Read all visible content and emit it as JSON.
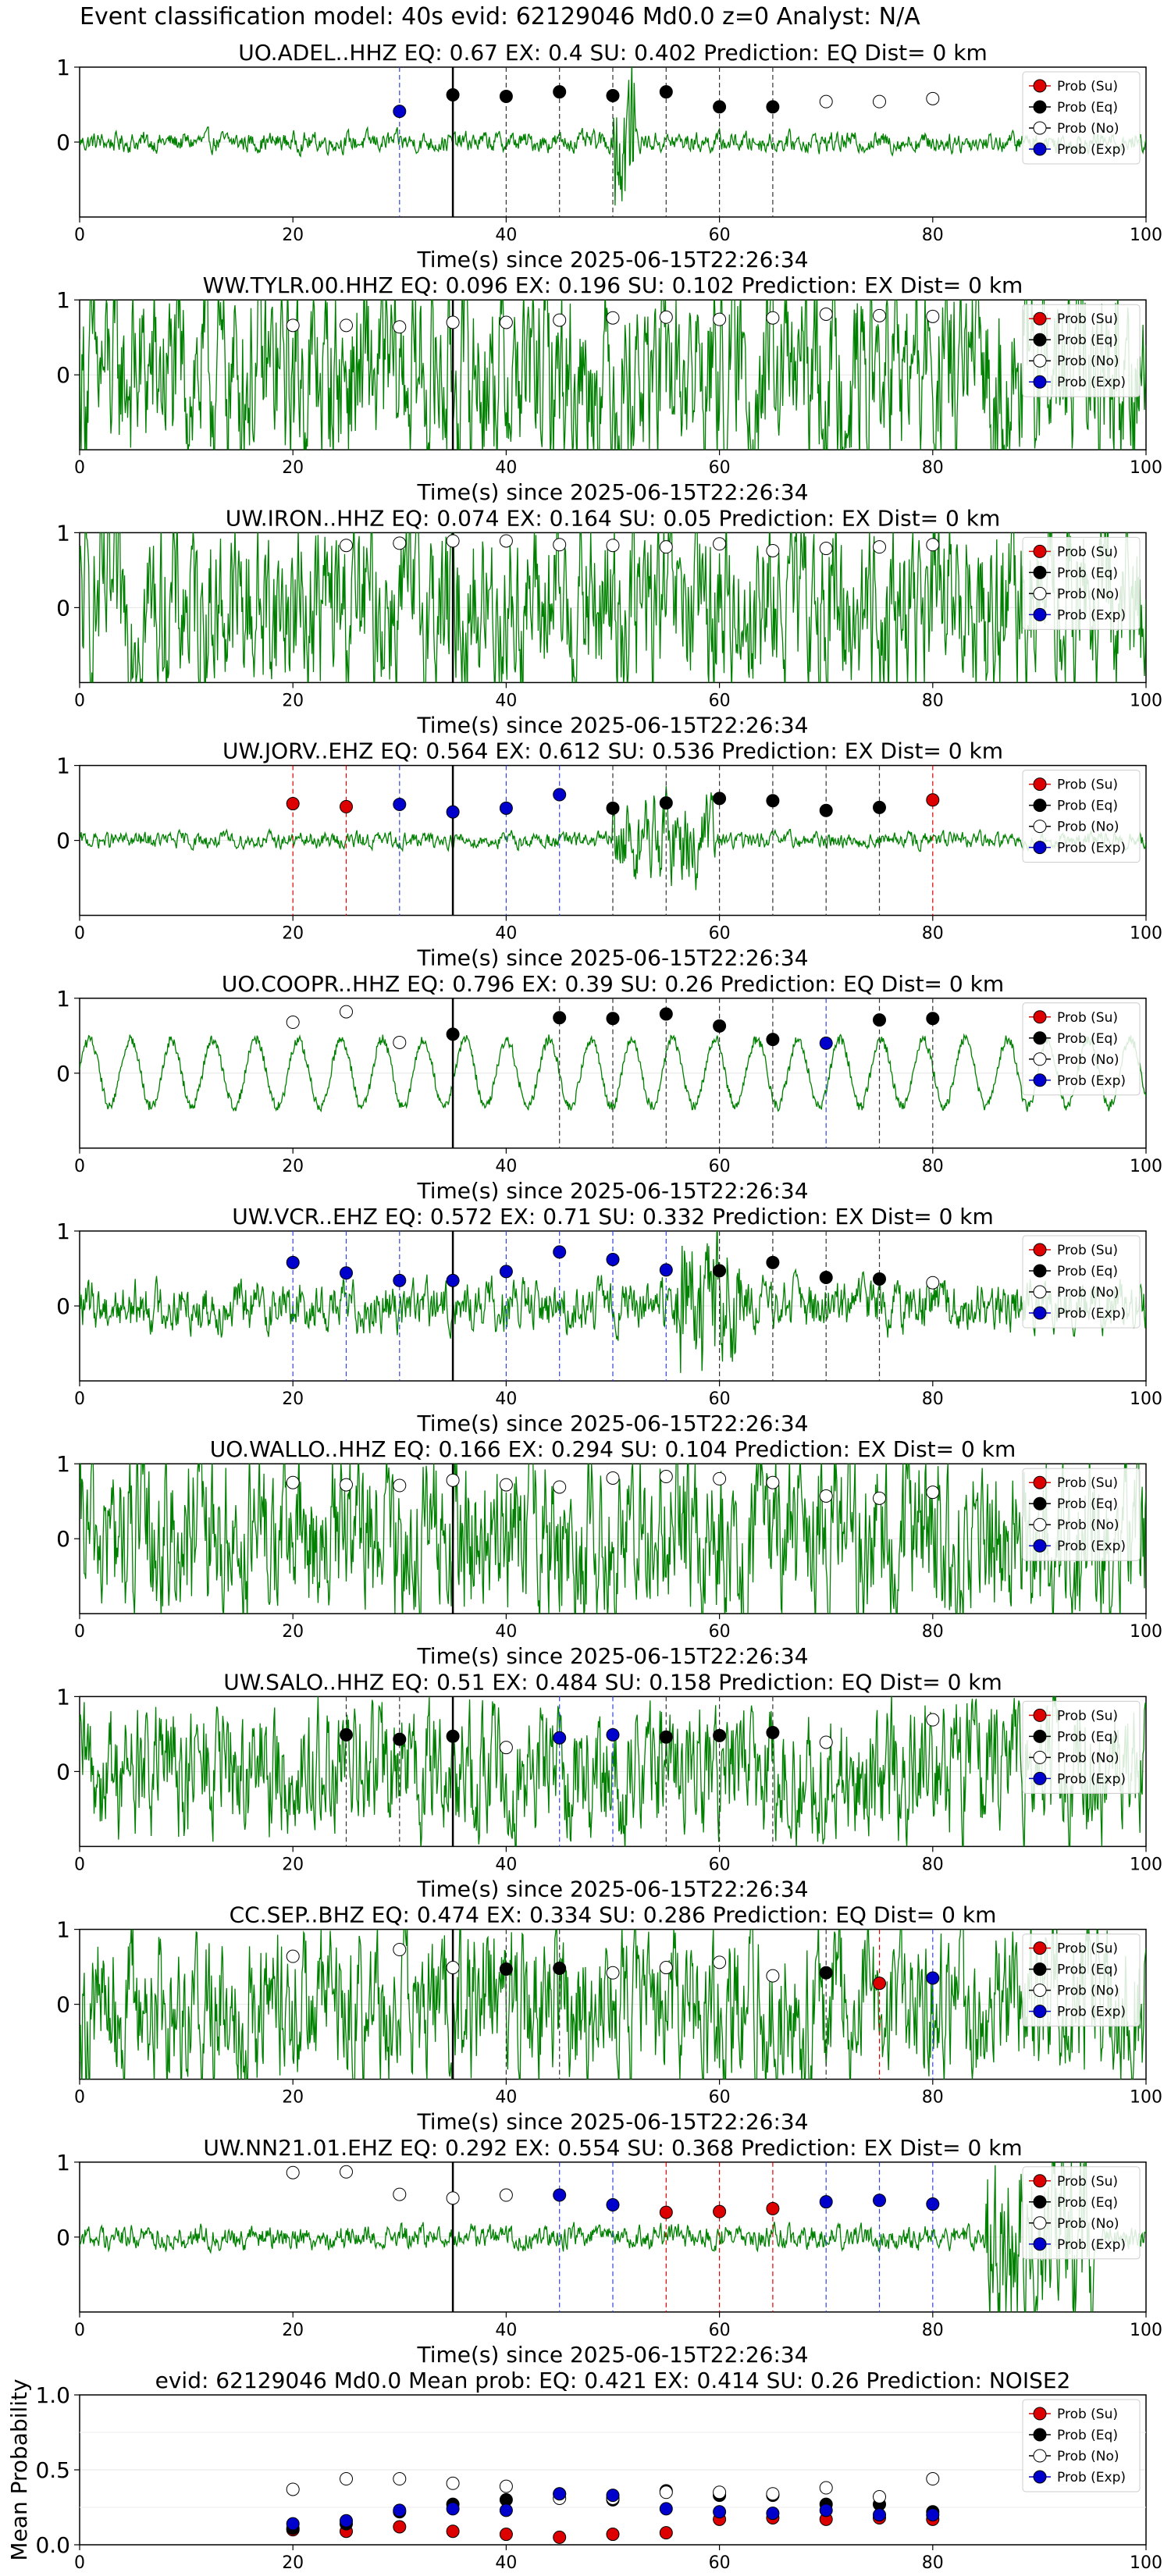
{
  "figure_title": "Event classification model: 40s evid: 62129046 Md0.0 z=0 Analyst: N/A",
  "legend_labels": [
    "Prob (Su)",
    "Prob (Eq)",
    "Prob (No)",
    "Prob (Exp)"
  ],
  "colors": {
    "Su": "#dd0000",
    "Eq": "#000000",
    "No": "#ffffff",
    "Exp": "#0000cc",
    "waveform": "#008000"
  },
  "chart_data": [
    {
      "type": "scatter",
      "title": "UO.ADEL..HHZ   EQ: 0.67  EX: 0.4  SU: 0.402   Prediction: EQ    Dist= 0 km",
      "xlabel": "Time(s) since 2025-06-15T22:26:34",
      "xlim": [
        0,
        100
      ],
      "ylim": [
        -1,
        1
      ],
      "xticks": [
        0,
        20,
        40,
        60,
        80,
        100
      ],
      "yticks": [
        0,
        1
      ],
      "waveform_amp": 0.1,
      "burst": [
        50,
        52,
        0.9
      ],
      "pick_time": 35,
      "points": [
        {
          "x": 30,
          "y": 0.41,
          "c": "Exp"
        },
        {
          "x": 35,
          "y": 0.63,
          "c": "Eq"
        },
        {
          "x": 40,
          "y": 0.61,
          "c": "Eq"
        },
        {
          "x": 45,
          "y": 0.67,
          "c": "Eq"
        },
        {
          "x": 50,
          "y": 0.62,
          "c": "Eq"
        },
        {
          "x": 55,
          "y": 0.67,
          "c": "Eq"
        },
        {
          "x": 60,
          "y": 0.47,
          "c": "Eq"
        },
        {
          "x": 65,
          "y": 0.47,
          "c": "Eq"
        },
        {
          "x": 70,
          "y": 0.54,
          "c": "No"
        },
        {
          "x": 75,
          "y": 0.54,
          "c": "No"
        },
        {
          "x": 80,
          "y": 0.58,
          "c": "No"
        }
      ]
    },
    {
      "type": "scatter",
      "title": "WW.TYLR.00.HHZ   EQ: 0.096  EX: 0.196  SU: 0.102   Prediction: EX    Dist= 0 km",
      "xlabel": "Time(s) since 2025-06-15T22:26:34",
      "xlim": [
        0,
        100
      ],
      "ylim": [
        -1,
        1
      ],
      "xticks": [
        0,
        20,
        40,
        60,
        80,
        100
      ],
      "yticks": [
        0,
        1
      ],
      "waveform_amp": 0.9,
      "pick_time": 35,
      "points": [
        {
          "x": 20,
          "y": 0.66,
          "c": "No"
        },
        {
          "x": 25,
          "y": 0.66,
          "c": "No"
        },
        {
          "x": 30,
          "y": 0.64,
          "c": "No"
        },
        {
          "x": 35,
          "y": 0.7,
          "c": "No"
        },
        {
          "x": 40,
          "y": 0.7,
          "c": "No"
        },
        {
          "x": 45,
          "y": 0.73,
          "c": "No"
        },
        {
          "x": 50,
          "y": 0.76,
          "c": "No"
        },
        {
          "x": 55,
          "y": 0.77,
          "c": "No"
        },
        {
          "x": 60,
          "y": 0.74,
          "c": "No"
        },
        {
          "x": 65,
          "y": 0.76,
          "c": "No"
        },
        {
          "x": 70,
          "y": 0.81,
          "c": "No"
        },
        {
          "x": 75,
          "y": 0.79,
          "c": "No"
        },
        {
          "x": 80,
          "y": 0.78,
          "c": "No"
        }
      ]
    },
    {
      "type": "scatter",
      "title": "UW.IRON..HHZ   EQ: 0.074  EX: 0.164  SU: 0.05   Prediction: EX    Dist= 0 km",
      "xlabel": "Time(s) since 2025-06-15T22:26:34",
      "xlim": [
        0,
        100
      ],
      "ylim": [
        -1,
        1
      ],
      "xticks": [
        0,
        20,
        40,
        60,
        80,
        100
      ],
      "yticks": [
        0,
        1
      ],
      "waveform_amp": 0.85,
      "pick_time": 35,
      "points": [
        {
          "x": 25,
          "y": 0.83,
          "c": "No"
        },
        {
          "x": 30,
          "y": 0.86,
          "c": "No"
        },
        {
          "x": 35,
          "y": 0.89,
          "c": "No"
        },
        {
          "x": 40,
          "y": 0.89,
          "c": "No"
        },
        {
          "x": 45,
          "y": 0.84,
          "c": "No"
        },
        {
          "x": 50,
          "y": 0.83,
          "c": "No"
        },
        {
          "x": 55,
          "y": 0.81,
          "c": "No"
        },
        {
          "x": 60,
          "y": 0.85,
          "c": "No"
        },
        {
          "x": 65,
          "y": 0.76,
          "c": "No"
        },
        {
          "x": 70,
          "y": 0.79,
          "c": "No"
        },
        {
          "x": 75,
          "y": 0.81,
          "c": "No"
        },
        {
          "x": 80,
          "y": 0.84,
          "c": "No"
        }
      ]
    },
    {
      "type": "scatter",
      "title": "UW.JORV..EHZ   EQ: 0.564  EX: 0.612  SU: 0.536   Prediction: EX    Dist= 0 km",
      "xlabel": "Time(s) since 2025-06-15T22:26:34",
      "xlim": [
        0,
        100
      ],
      "ylim": [
        -1,
        1
      ],
      "xticks": [
        0,
        20,
        40,
        60,
        80,
        100
      ],
      "yticks": [
        0,
        1
      ],
      "waveform_amp": 0.08,
      "burst": [
        50,
        60,
        0.45
      ],
      "pick_time": 35,
      "points": [
        {
          "x": 20,
          "y": 0.49,
          "c": "Su"
        },
        {
          "x": 25,
          "y": 0.45,
          "c": "Su"
        },
        {
          "x": 30,
          "y": 0.48,
          "c": "Exp"
        },
        {
          "x": 35,
          "y": 0.38,
          "c": "Exp"
        },
        {
          "x": 40,
          "y": 0.43,
          "c": "Exp"
        },
        {
          "x": 45,
          "y": 0.61,
          "c": "Exp"
        },
        {
          "x": 50,
          "y": 0.43,
          "c": "Eq"
        },
        {
          "x": 55,
          "y": 0.5,
          "c": "Eq"
        },
        {
          "x": 60,
          "y": 0.56,
          "c": "Eq"
        },
        {
          "x": 65,
          "y": 0.53,
          "c": "Eq"
        },
        {
          "x": 70,
          "y": 0.4,
          "c": "Eq"
        },
        {
          "x": 75,
          "y": 0.44,
          "c": "Eq"
        },
        {
          "x": 80,
          "y": 0.54,
          "c": "Su"
        }
      ]
    },
    {
      "type": "scatter",
      "title": "UO.COOPR..HHZ   EQ: 0.796  EX: 0.39  SU: 0.26   Prediction: EQ    Dist= 0 km",
      "xlabel": "Time(s) since 2025-06-15T22:26:34",
      "xlim": [
        0,
        100
      ],
      "ylim": [
        -1,
        1
      ],
      "xticks": [
        0,
        20,
        40,
        60,
        80,
        100
      ],
      "yticks": [
        0,
        1
      ],
      "waveform_amp": 0.45,
      "smooth": true,
      "pick_time": 35,
      "points": [
        {
          "x": 20,
          "y": 0.68,
          "c": "No"
        },
        {
          "x": 25,
          "y": 0.82,
          "c": "No"
        },
        {
          "x": 30,
          "y": 0.41,
          "c": "No"
        },
        {
          "x": 35,
          "y": 0.52,
          "c": "Eq"
        },
        {
          "x": 45,
          "y": 0.74,
          "c": "Eq"
        },
        {
          "x": 50,
          "y": 0.73,
          "c": "Eq"
        },
        {
          "x": 55,
          "y": 0.79,
          "c": "Eq"
        },
        {
          "x": 60,
          "y": 0.63,
          "c": "Eq"
        },
        {
          "x": 65,
          "y": 0.45,
          "c": "Eq"
        },
        {
          "x": 70,
          "y": 0.4,
          "c": "Exp"
        },
        {
          "x": 75,
          "y": 0.71,
          "c": "Eq"
        },
        {
          "x": 80,
          "y": 0.73,
          "c": "Eq"
        }
      ]
    },
    {
      "type": "scatter",
      "title": "UW.VCR..EHZ   EQ: 0.572  EX: 0.71  SU: 0.332   Prediction: EX    Dist= 0 km",
      "xlabel": "Time(s) since 2025-06-15T22:26:34",
      "xlim": [
        0,
        100
      ],
      "ylim": [
        -1,
        1
      ],
      "xticks": [
        0,
        20,
        40,
        60,
        80,
        100
      ],
      "yticks": [
        0,
        1
      ],
      "waveform_amp": 0.25,
      "burst": [
        56,
        62,
        0.8
      ],
      "pick_time": 35,
      "points": [
        {
          "x": 20,
          "y": 0.58,
          "c": "Exp"
        },
        {
          "x": 25,
          "y": 0.44,
          "c": "Exp"
        },
        {
          "x": 30,
          "y": 0.34,
          "c": "Exp"
        },
        {
          "x": 35,
          "y": 0.34,
          "c": "Exp"
        },
        {
          "x": 40,
          "y": 0.46,
          "c": "Exp"
        },
        {
          "x": 45,
          "y": 0.72,
          "c": "Exp"
        },
        {
          "x": 50,
          "y": 0.62,
          "c": "Exp"
        },
        {
          "x": 55,
          "y": 0.48,
          "c": "Exp"
        },
        {
          "x": 60,
          "y": 0.47,
          "c": "Eq"
        },
        {
          "x": 65,
          "y": 0.58,
          "c": "Eq"
        },
        {
          "x": 70,
          "y": 0.38,
          "c": "Eq"
        },
        {
          "x": 75,
          "y": 0.36,
          "c": "Eq"
        },
        {
          "x": 80,
          "y": 0.31,
          "c": "No"
        }
      ]
    },
    {
      "type": "scatter",
      "title": "UO.WALLO..HHZ   EQ: 0.166  EX: 0.294  SU: 0.104   Prediction: EX    Dist= 0 km",
      "xlabel": "Time(s) since 2025-06-15T22:26:34",
      "xlim": [
        0,
        100
      ],
      "ylim": [
        -1,
        1
      ],
      "xticks": [
        0,
        20,
        40,
        60,
        80,
        100
      ],
      "yticks": [
        0,
        1
      ],
      "waveform_amp": 0.8,
      "pick_time": 35,
      "points": [
        {
          "x": 20,
          "y": 0.75,
          "c": "No"
        },
        {
          "x": 25,
          "y": 0.72,
          "c": "No"
        },
        {
          "x": 30,
          "y": 0.71,
          "c": "No"
        },
        {
          "x": 35,
          "y": 0.78,
          "c": "No"
        },
        {
          "x": 40,
          "y": 0.72,
          "c": "No"
        },
        {
          "x": 45,
          "y": 0.69,
          "c": "No"
        },
        {
          "x": 50,
          "y": 0.81,
          "c": "No"
        },
        {
          "x": 55,
          "y": 0.83,
          "c": "No"
        },
        {
          "x": 60,
          "y": 0.8,
          "c": "No"
        },
        {
          "x": 65,
          "y": 0.75,
          "c": "No"
        },
        {
          "x": 70,
          "y": 0.57,
          "c": "No"
        },
        {
          "x": 75,
          "y": 0.54,
          "c": "No"
        },
        {
          "x": 80,
          "y": 0.62,
          "c": "No"
        }
      ]
    },
    {
      "type": "scatter",
      "title": "UW.SALO..HHZ   EQ: 0.51  EX: 0.484  SU: 0.158   Prediction: EQ    Dist= 0 km",
      "xlabel": "Time(s) since 2025-06-15T22:26:34",
      "xlim": [
        0,
        100
      ],
      "ylim": [
        -1,
        1
      ],
      "xticks": [
        0,
        20,
        40,
        60,
        80,
        100
      ],
      "yticks": [
        0,
        1
      ],
      "waveform_amp": 0.65,
      "pick_time": 35,
      "points": [
        {
          "x": 25,
          "y": 0.49,
          "c": "Eq"
        },
        {
          "x": 30,
          "y": 0.43,
          "c": "Eq"
        },
        {
          "x": 35,
          "y": 0.47,
          "c": "Eq"
        },
        {
          "x": 40,
          "y": 0.32,
          "c": "No"
        },
        {
          "x": 45,
          "y": 0.45,
          "c": "Exp"
        },
        {
          "x": 50,
          "y": 0.49,
          "c": "Exp"
        },
        {
          "x": 55,
          "y": 0.46,
          "c": "Eq"
        },
        {
          "x": 60,
          "y": 0.48,
          "c": "Eq"
        },
        {
          "x": 65,
          "y": 0.52,
          "c": "Eq"
        },
        {
          "x": 70,
          "y": 0.39,
          "c": "No"
        },
        {
          "x": 80,
          "y": 0.69,
          "c": "No"
        }
      ]
    },
    {
      "type": "scatter",
      "title": "CC.SEP..BHZ   EQ: 0.474  EX: 0.334  SU: 0.286   Prediction: EQ    Dist= 0 km",
      "xlabel": "Time(s) since 2025-06-15T22:26:34",
      "xlim": [
        0,
        100
      ],
      "ylim": [
        -1,
        1
      ],
      "xticks": [
        0,
        20,
        40,
        60,
        80,
        100
      ],
      "yticks": [
        0,
        1
      ],
      "waveform_amp": 0.75,
      "pick_time": 35,
      "points": [
        {
          "x": 20,
          "y": 0.64,
          "c": "No"
        },
        {
          "x": 30,
          "y": 0.73,
          "c": "No"
        },
        {
          "x": 35,
          "y": 0.49,
          "c": "No"
        },
        {
          "x": 40,
          "y": 0.47,
          "c": "Eq"
        },
        {
          "x": 45,
          "y": 0.48,
          "c": "Eq"
        },
        {
          "x": 50,
          "y": 0.42,
          "c": "No"
        },
        {
          "x": 55,
          "y": 0.49,
          "c": "No"
        },
        {
          "x": 60,
          "y": 0.56,
          "c": "No"
        },
        {
          "x": 65,
          "y": 0.38,
          "c": "No"
        },
        {
          "x": 70,
          "y": 0.42,
          "c": "Eq"
        },
        {
          "x": 75,
          "y": 0.28,
          "c": "Su"
        },
        {
          "x": 80,
          "y": 0.35,
          "c": "Exp"
        }
      ]
    },
    {
      "type": "scatter",
      "title": "UW.NN21.01.EHZ   EQ: 0.292  EX: 0.554  SU: 0.368   Prediction: EX    Dist= 0 km",
      "xlabel": "Time(s) since 2025-06-15T22:26:34",
      "xlim": [
        0,
        100
      ],
      "ylim": [
        -1,
        1
      ],
      "xticks": [
        0,
        20,
        40,
        60,
        80,
        100
      ],
      "yticks": [
        0,
        1
      ],
      "waveform_amp": 0.12,
      "burst": [
        85,
        95,
        0.9
      ],
      "pick_time": 35,
      "points": [
        {
          "x": 20,
          "y": 0.86,
          "c": "No"
        },
        {
          "x": 25,
          "y": 0.87,
          "c": "No"
        },
        {
          "x": 30,
          "y": 0.57,
          "c": "No"
        },
        {
          "x": 35,
          "y": 0.52,
          "c": "No"
        },
        {
          "x": 40,
          "y": 0.56,
          "c": "No"
        },
        {
          "x": 45,
          "y": 0.56,
          "c": "Exp"
        },
        {
          "x": 50,
          "y": 0.43,
          "c": "Exp"
        },
        {
          "x": 55,
          "y": 0.33,
          "c": "Su"
        },
        {
          "x": 60,
          "y": 0.34,
          "c": "Su"
        },
        {
          "x": 65,
          "y": 0.38,
          "c": "Su"
        },
        {
          "x": 70,
          "y": 0.47,
          "c": "Exp"
        },
        {
          "x": 75,
          "y": 0.49,
          "c": "Exp"
        },
        {
          "x": 80,
          "y": 0.44,
          "c": "Exp"
        }
      ]
    },
    {
      "type": "scatter",
      "title": "evid: 62129046  Md0.0   Mean prob:   EQ: 0.421  EX: 0.414  SU: 0.26   Prediction: NOISE2",
      "ylabel": "Mean Probability",
      "xlim": [
        0,
        100
      ],
      "ylim": [
        0,
        1
      ],
      "xticks": [
        0,
        20,
        40,
        60,
        80,
        100
      ],
      "yticks": [
        0.0,
        0.5,
        1.0
      ],
      "series": [
        {
          "name": "Prob (Su)",
          "c": "Su",
          "x": [
            20,
            25,
            30,
            35,
            40,
            45,
            50,
            55,
            60,
            65,
            70,
            75,
            80
          ],
          "y": [
            0.1,
            0.09,
            0.12,
            0.09,
            0.07,
            0.05,
            0.07,
            0.08,
            0.17,
            0.18,
            0.17,
            0.18,
            0.17
          ]
        },
        {
          "name": "Prob (Eq)",
          "c": "Eq",
          "x": [
            20,
            25,
            30,
            35,
            40,
            45,
            50,
            55,
            60,
            65,
            70,
            75,
            80
          ],
          "y": [
            0.11,
            0.14,
            0.22,
            0.27,
            0.3,
            0.34,
            0.3,
            0.36,
            0.33,
            0.33,
            0.27,
            0.27,
            0.22
          ]
        },
        {
          "name": "Prob (No)",
          "c": "No",
          "x": [
            20,
            25,
            30,
            35,
            40,
            45,
            50,
            55,
            60,
            65,
            70,
            75,
            80
          ],
          "y": [
            0.37,
            0.44,
            0.44,
            0.41,
            0.39,
            0.31,
            0.31,
            0.35,
            0.35,
            0.34,
            0.38,
            0.32,
            0.44
          ]
        },
        {
          "name": "Prob (Exp)",
          "c": "Exp",
          "x": [
            20,
            25,
            30,
            35,
            40,
            45,
            50,
            55,
            60,
            65,
            70,
            75,
            80
          ],
          "y": [
            0.14,
            0.16,
            0.23,
            0.24,
            0.23,
            0.34,
            0.33,
            0.24,
            0.22,
            0.21,
            0.23,
            0.2,
            0.2
          ]
        }
      ]
    }
  ]
}
